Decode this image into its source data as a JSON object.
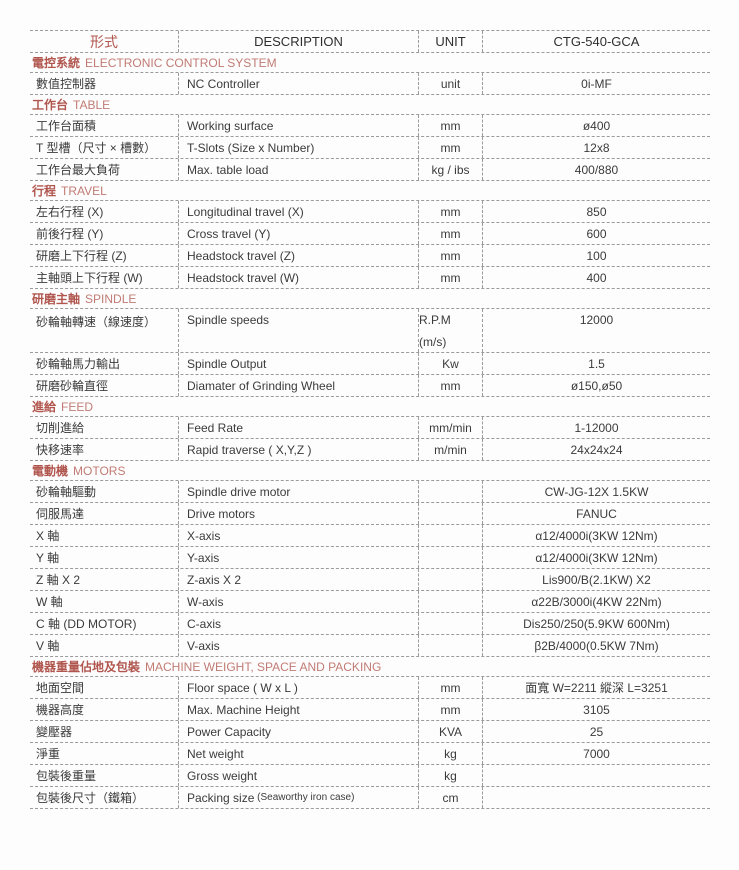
{
  "colors": {
    "accent": "#b0564e",
    "accent_light": "#c17b74",
    "text": "#3b3b3b",
    "border": "#9b9b9b",
    "background": "#fdfdfd"
  },
  "header": {
    "col_type": "形式",
    "col_description": "DESCRIPTION",
    "col_unit": "UNIT",
    "col_model": "CTG-540-GCA"
  },
  "sections": [
    {
      "title_zh": "電控系統",
      "title_en": "ELECTRONIC CONTROL SYSTEM",
      "rows": [
        {
          "zh": "數值控制器",
          "en": "NC Controller",
          "unit": "unit",
          "value": "0i-MF"
        }
      ]
    },
    {
      "title_zh": "工作台",
      "title_en": "TABLE",
      "rows": [
        {
          "zh": "工作台面積",
          "en": "Working surface",
          "unit": "mm",
          "value": "ø400"
        },
        {
          "zh": "T 型槽（尺寸 × 槽數）",
          "en": "T-Slots (Size x Number)",
          "unit": "mm",
          "value": "12x8"
        },
        {
          "zh": "工作台最大負荷",
          "en": "Max. table load",
          "unit": "kg / ibs",
          "value": "400/880"
        }
      ]
    },
    {
      "title_zh": "行程",
      "title_en": "TRAVEL",
      "rows": [
        {
          "zh": "左右行程 (X)",
          "en": "Longitudinal travel (X)",
          "unit": "mm",
          "value": "850"
        },
        {
          "zh": "前後行程 (Y)",
          "en": "Cross travel (Y)",
          "unit": "mm",
          "value": "600"
        },
        {
          "zh": "研磨上下行程 (Z)",
          "en": "Headstock travel (Z)",
          "unit": "mm",
          "value": "100"
        },
        {
          "zh": "主軸頭上下行程 (W)",
          "en": "Headstock travel (W)",
          "unit": "mm",
          "value": "400"
        }
      ]
    },
    {
      "title_zh": "研磨主軸",
      "title_en": "SPINDLE",
      "rows": [
        {
          "zh": "砂輪軸轉速（線速度）",
          "en": "Spindle speeds",
          "unit": "R.P.M",
          "unit2": "(m/s)",
          "value": "12000",
          "tall": true
        },
        {
          "zh": "砂輪軸馬力輸出",
          "en": "Spindle Output",
          "unit": "Kw",
          "value": "1.5"
        },
        {
          "zh": "研磨砂輪直徑",
          "en": "Diamater of Grinding Wheel",
          "unit": "mm",
          "value": "ø150,ø50"
        }
      ]
    },
    {
      "title_zh": "進給",
      "title_en": "FEED",
      "rows": [
        {
          "zh": "切削進給",
          "en": "Feed Rate",
          "unit": "mm/min",
          "value": "1-12000"
        },
        {
          "zh": "快移速率",
          "en": "Rapid traverse ( X,Y,Z )",
          "unit": "m/min",
          "value": "24x24x24"
        }
      ]
    },
    {
      "title_zh": "電動機",
      "title_en": "MOTORS",
      "rows": [
        {
          "zh": "砂輪軸驅動",
          "en": "Spindle drive motor",
          "unit": "",
          "value": "CW-JG-12X 1.5KW"
        },
        {
          "zh": "伺服馬達",
          "en": "Drive motors",
          "unit": "",
          "value": "FANUC"
        },
        {
          "zh": "X 軸",
          "en": "X-axis",
          "unit": "",
          "value": "α12/4000i(3KW 12Nm)"
        },
        {
          "zh": "Y 軸",
          "en": "Y-axis",
          "unit": "",
          "value": "α12/4000i(3KW 12Nm)"
        },
        {
          "zh": "Z 軸 X 2",
          "en": "Z-axis X 2",
          "unit": "",
          "value": "Lis900/B(2.1KW) X2"
        },
        {
          "zh": "W 軸",
          "en": "W-axis",
          "unit": "",
          "value": "α22B/3000i(4KW 22Nm)"
        },
        {
          "zh": "C 軸 (DD MOTOR)",
          "en": "C-axis",
          "unit": "",
          "value": "Dis250/250(5.9KW 600Nm)"
        },
        {
          "zh": "V 軸",
          "en": "V-axis",
          "unit": "",
          "value": "β2B/4000(0.5KW 7Nm)"
        }
      ]
    },
    {
      "title_zh": "機器重量佔地及包裝",
      "title_en": "MACHINE WEIGHT, SPACE AND PACKING",
      "rows": [
        {
          "zh": "地面空間",
          "en": "Floor space ( W x L )",
          "unit": "mm",
          "value": "面寬 W=2211 縱深 L=3251"
        },
        {
          "zh": "機器高度",
          "en": "Max. Machine Height",
          "unit": "mm",
          "value": "3105"
        },
        {
          "zh": "變壓器",
          "en": "Power Capacity",
          "unit": "KVA",
          "value": "25"
        },
        {
          "zh": "淨重",
          "en": "Net weight",
          "unit": "kg",
          "value": "7000"
        },
        {
          "zh": "包裝後重量",
          "en": "Gross weight",
          "unit": "kg",
          "value": ""
        },
        {
          "zh": "包裝後尺寸（鐵箱）",
          "en": "Packing size",
          "en_small": "(Seaworthy iron case)",
          "unit": "cm",
          "value": ""
        }
      ]
    }
  ]
}
